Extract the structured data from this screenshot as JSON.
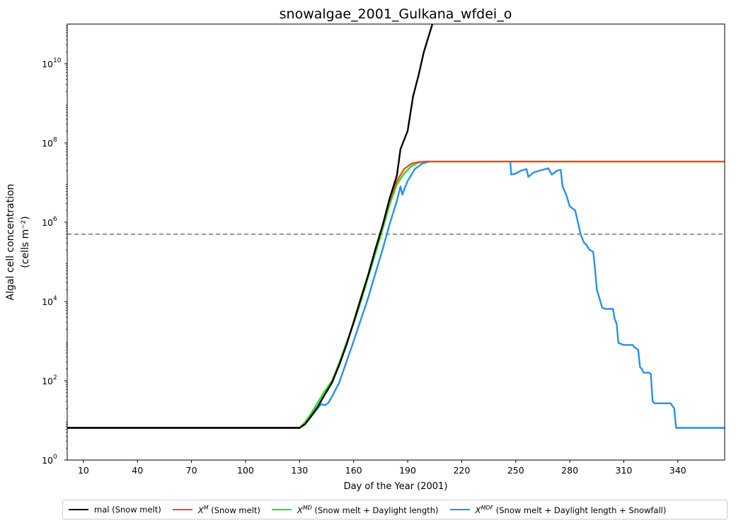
{
  "chart_data": {
    "type": "line",
    "title": "snowalgae_2001_Gulkana_wfdei_o",
    "xlabel": "Day of the Year (2001)",
    "ylabel_line1": "Algal cell concentration",
    "ylabel_line2": "(cells m⁻²)",
    "xlim": [
      1,
      366
    ],
    "ylim": [
      1,
      100000000000
    ],
    "yscale": "log",
    "xticks": [
      10,
      40,
      70,
      100,
      130,
      160,
      190,
      220,
      250,
      280,
      310,
      340
    ],
    "yticks": [
      {
        "value": 1,
        "mantissa": "10",
        "exp": "0"
      },
      {
        "value": 100,
        "mantissa": "10",
        "exp": "2"
      },
      {
        "value": 10000,
        "mantissa": "10",
        "exp": "4"
      },
      {
        "value": 1000000,
        "mantissa": "10",
        "exp": "6"
      },
      {
        "value": 100000000,
        "mantissa": "10",
        "exp": "8"
      },
      {
        "value": 10000000000,
        "mantissa": "10",
        "exp": "10"
      }
    ],
    "threshold": {
      "value": 500000,
      "color": "#808080",
      "style": "dashed"
    },
    "legend_placement": "bottom",
    "series": [
      {
        "name": "mal (Snow melt)",
        "color": "#000000",
        "points": [
          [
            1,
            6.5
          ],
          [
            112,
            6.5
          ],
          [
            130,
            6.5
          ],
          [
            133,
            8
          ],
          [
            136,
            12
          ],
          [
            140,
            22
          ],
          [
            144,
            45
          ],
          [
            148,
            90
          ],
          [
            152,
            250
          ],
          [
            156,
            800
          ],
          [
            160,
            3000
          ],
          [
            164,
            12000
          ],
          [
            168,
            45000
          ],
          [
            172,
            200000
          ],
          [
            176,
            800000
          ],
          [
            180,
            4000000
          ],
          [
            184,
            15000000
          ],
          [
            186,
            70000000
          ],
          [
            190,
            200000000
          ],
          [
            193,
            1500000000
          ],
          [
            196,
            5000000000
          ],
          [
            199,
            20000000000
          ],
          [
            204,
            110000000000
          ]
        ]
      },
      {
        "name": "X^M (Snow melt)",
        "label_main": "X",
        "label_sup": "M",
        "label_rest": " (Snow melt)",
        "color": "#f04b18",
        "points": [
          [
            1,
            6.5
          ],
          [
            130,
            6.5
          ],
          [
            133,
            8
          ],
          [
            136,
            12
          ],
          [
            140,
            22
          ],
          [
            144,
            45
          ],
          [
            148,
            90
          ],
          [
            152,
            250
          ],
          [
            156,
            800
          ],
          [
            160,
            3000
          ],
          [
            164,
            12000
          ],
          [
            168,
            45000
          ],
          [
            172,
            200000
          ],
          [
            176,
            800000
          ],
          [
            180,
            3500000
          ],
          [
            184,
            11000000
          ],
          [
            188,
            22000000
          ],
          [
            192,
            30000000
          ],
          [
            196,
            33000000
          ],
          [
            200,
            34000000
          ],
          [
            366,
            34000000
          ]
        ]
      },
      {
        "name": "X^MD (Snow melt + Daylight length)",
        "label_main": "X",
        "label_sup": "MD",
        "label_rest": " (Snow melt + Daylight length)",
        "color": "#1ee61e",
        "points": [
          [
            1,
            6.5
          ],
          [
            130,
            6.5
          ],
          [
            133,
            9
          ],
          [
            136,
            14
          ],
          [
            140,
            28
          ],
          [
            144,
            55
          ],
          [
            148,
            100
          ],
          [
            152,
            280
          ],
          [
            156,
            900
          ],
          [
            160,
            2800
          ],
          [
            164,
            10000
          ],
          [
            168,
            40000
          ],
          [
            172,
            160000
          ],
          [
            176,
            650000
          ],
          [
            180,
            2800000
          ],
          [
            184,
            9000000
          ],
          [
            188,
            17000000
          ],
          [
            192,
            26000000
          ],
          [
            196,
            32000000
          ],
          [
            200,
            34000000
          ],
          [
            366,
            34000000
          ]
        ]
      },
      {
        "name": "X^MDF (Snow melt + Daylight length + Snowfall)",
        "label_main": "X",
        "label_sup": "MDF",
        "label_rest": " (Snow melt + Daylight length + Snowfall)",
        "color": "#2590ef",
        "points": [
          [
            1,
            6.5
          ],
          [
            130,
            6.5
          ],
          [
            133,
            8
          ],
          [
            136,
            12
          ],
          [
            140,
            20
          ],
          [
            142,
            26
          ],
          [
            144,
            24
          ],
          [
            146,
            28
          ],
          [
            148,
            40
          ],
          [
            152,
            90
          ],
          [
            156,
            300
          ],
          [
            160,
            1000
          ],
          [
            164,
            3500
          ],
          [
            168,
            12000
          ],
          [
            172,
            50000
          ],
          [
            176,
            200000
          ],
          [
            180,
            900000
          ],
          [
            184,
            3500000
          ],
          [
            186,
            8000000
          ],
          [
            187,
            5000000
          ],
          [
            190,
            11000000
          ],
          [
            194,
            22000000
          ],
          [
            198,
            30000000
          ],
          [
            202,
            34000000
          ],
          [
            247,
            34000000
          ],
          [
            247.5,
            16000000
          ],
          [
            250,
            17000000
          ],
          [
            253,
            20000000
          ],
          [
            256,
            22000000
          ],
          [
            257,
            14000000
          ],
          [
            260,
            18000000
          ],
          [
            263,
            20000000
          ],
          [
            265,
            21000000
          ],
          [
            268,
            23000000
          ],
          [
            270,
            16000000
          ],
          [
            273,
            20000000
          ],
          [
            275,
            21000000
          ],
          [
            276,
            8000000
          ],
          [
            278,
            5000000
          ],
          [
            280,
            2500000
          ],
          [
            283,
            2000000
          ],
          [
            285,
            800000
          ],
          [
            286,
            500000
          ],
          [
            288,
            300000
          ],
          [
            289,
            280000
          ],
          [
            291,
            200000
          ],
          [
            293,
            180000
          ],
          [
            294,
            70000
          ],
          [
            295,
            20000
          ],
          [
            297,
            10000
          ],
          [
            298,
            7000
          ],
          [
            300,
            6500
          ],
          [
            304,
            6500
          ],
          [
            305,
            3500
          ],
          [
            306,
            2800
          ],
          [
            307,
            900
          ],
          [
            310,
            800
          ],
          [
            315,
            800
          ],
          [
            316,
            700
          ],
          [
            318,
            600
          ],
          [
            319,
            220
          ],
          [
            320,
            200
          ],
          [
            321,
            160
          ],
          [
            324,
            160
          ],
          [
            325,
            150
          ],
          [
            326,
            30
          ],
          [
            327,
            27
          ],
          [
            336,
            27
          ],
          [
            338,
            20
          ],
          [
            339,
            6.5
          ],
          [
            366,
            6.5
          ]
        ]
      }
    ]
  },
  "legend": {
    "items": [
      {
        "label": "mal (Snow melt)",
        "color": "#000000"
      },
      {
        "main": "X",
        "sup": "M",
        "rest": " (Snow melt)",
        "color": "#f04b18"
      },
      {
        "main": "X",
        "sup": "MD",
        "rest": " (Snow melt + Daylight length)",
        "color": "#1ee61e"
      },
      {
        "main": "X",
        "sup": "MDF",
        "rest": " (Snow melt + Daylight length + Snowfall)",
        "color": "#2590ef"
      }
    ]
  }
}
